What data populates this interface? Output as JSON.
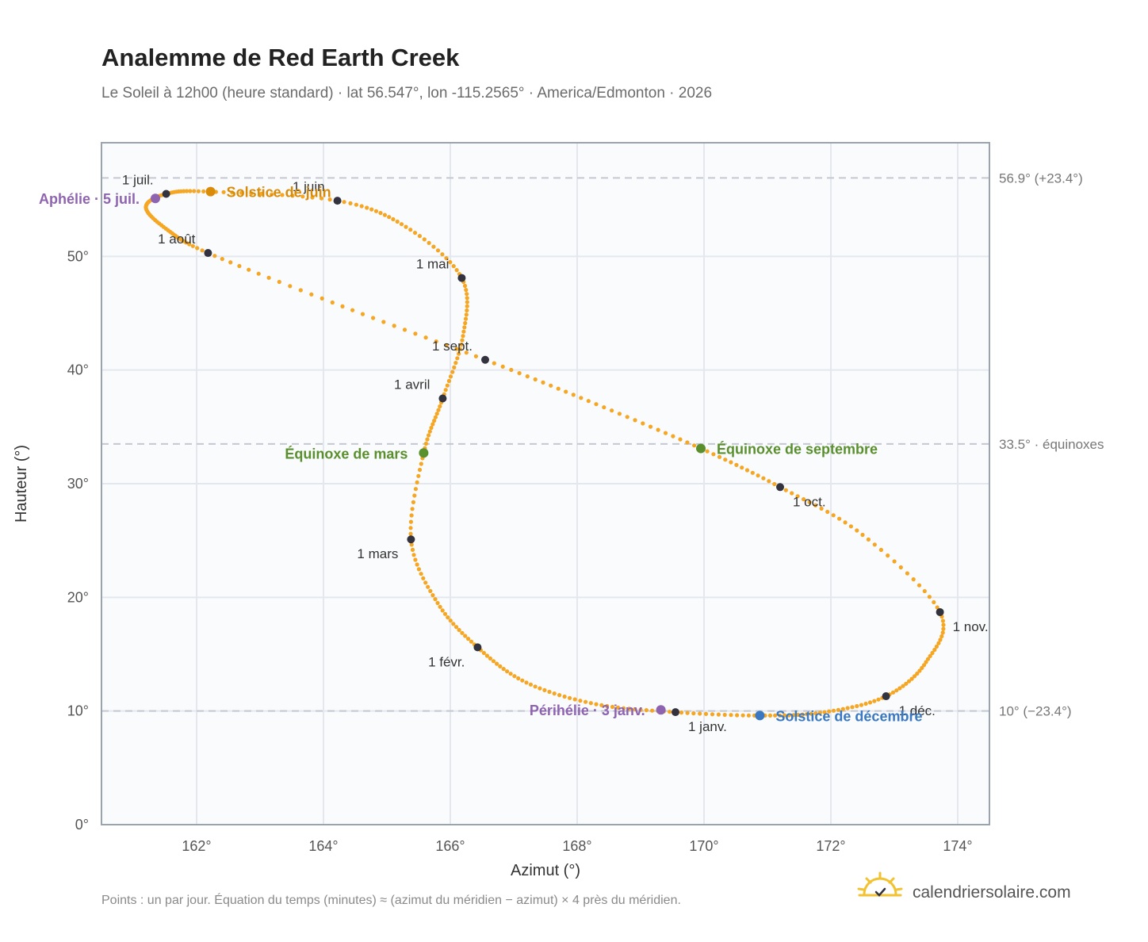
{
  "header": {
    "title": "Analemme de Red Earth Creek",
    "subtitle": "Le Soleil à 12h00 (heure standard) · lat 56.547°, lon -115.2565° · America/Edmonton · 2026"
  },
  "footer": {
    "note": "Points : un par jour. Équation du temps (minutes) ≈ (azimut du méridien − azimut) × 4 près du méridien.",
    "brand": "calendriersolaire.com"
  },
  "colors": {
    "curve": "#f5a623",
    "month_marker": "#333340",
    "solstice_june": "#d98c0a",
    "solstice_december": "#3a78c2",
    "equinox": "#5a8f2e",
    "apsis": "#8e63b0",
    "ref_line": "#c3c8d2",
    "grid": "#e4e8ee",
    "plot_bg": "#fafbfd",
    "frame": "#9aa3b0"
  },
  "chart_data": {
    "type": "scatter",
    "title": "Analemme de Red Earth Creek",
    "xlabel": "Azimut (°)",
    "ylabel": "Hauteur (°)",
    "xlim": [
      160.5,
      174.5
    ],
    "ylim": [
      0,
      60
    ],
    "grid": true,
    "xticks": [
      {
        "value": 162,
        "label": "162°"
      },
      {
        "value": 164,
        "label": "164°"
      },
      {
        "value": 166,
        "label": "166°"
      },
      {
        "value": 168,
        "label": "168°"
      },
      {
        "value": 170,
        "label": "170°"
      },
      {
        "value": 172,
        "label": "172°"
      },
      {
        "value": 174,
        "label": "174°"
      }
    ],
    "yticks": [
      {
        "value": 0,
        "label": "0°"
      },
      {
        "value": 10,
        "label": "10°"
      },
      {
        "value": 20,
        "label": "20°"
      },
      {
        "value": 30,
        "label": "30°"
      },
      {
        "value": 40,
        "label": "40°"
      },
      {
        "value": 50,
        "label": "50°"
      }
    ],
    "reference_lines": [
      {
        "y": 56.9,
        "label": "56.9° (+23.4°)"
      },
      {
        "y": 33.5,
        "label": "33.5° · équinoxes"
      },
      {
        "y": 10.0,
        "label": "10° (−23.4°)"
      }
    ],
    "curve_keypoints": [
      {
        "x": 169.55,
        "y": 9.9
      },
      {
        "x": 168.3,
        "y": 10.6
      },
      {
        "x": 167.2,
        "y": 12.5
      },
      {
        "x": 166.43,
        "y": 15.6
      },
      {
        "x": 165.8,
        "y": 19.5
      },
      {
        "x": 165.38,
        "y": 25.1
      },
      {
        "x": 165.58,
        "y": 32.7
      },
      {
        "x": 165.88,
        "y": 37.5
      },
      {
        "x": 166.2,
        "y": 43.0
      },
      {
        "x": 166.18,
        "y": 48.1
      },
      {
        "x": 165.3,
        "y": 52.6
      },
      {
        "x": 164.22,
        "y": 54.9
      },
      {
        "x": 162.2,
        "y": 55.7
      },
      {
        "x": 161.52,
        "y": 55.5
      },
      {
        "x": 161.2,
        "y": 54.3
      },
      {
        "x": 161.55,
        "y": 52.3
      },
      {
        "x": 162.18,
        "y": 50.3
      },
      {
        "x": 164.3,
        "y": 45.6
      },
      {
        "x": 166.55,
        "y": 40.9
      },
      {
        "x": 168.3,
        "y": 37.0
      },
      {
        "x": 169.95,
        "y": 33.1
      },
      {
        "x": 171.2,
        "y": 29.7
      },
      {
        "x": 172.5,
        "y": 25.5
      },
      {
        "x": 173.72,
        "y": 18.7
      },
      {
        "x": 173.5,
        "y": 14.3
      },
      {
        "x": 172.87,
        "y": 11.3
      },
      {
        "x": 171.9,
        "y": 9.9
      },
      {
        "x": 170.88,
        "y": 9.6
      },
      {
        "x": 169.55,
        "y": 9.9
      }
    ],
    "month_markers": [
      {
        "label": "1 janv.",
        "x": 169.55,
        "y": 9.9,
        "pos": "below-right"
      },
      {
        "label": "1 févr.",
        "x": 166.43,
        "y": 15.6,
        "pos": "below-left"
      },
      {
        "label": "1 mars",
        "x": 165.38,
        "y": 25.1,
        "pos": "below-left"
      },
      {
        "label": "1 avril",
        "x": 165.88,
        "y": 37.5,
        "pos": "above-left"
      },
      {
        "label": "1 mai",
        "x": 166.18,
        "y": 48.1,
        "pos": "above-left"
      },
      {
        "label": "1 juin",
        "x": 164.22,
        "y": 54.9,
        "pos": "above-left"
      },
      {
        "label": "1 juil.",
        "x": 161.52,
        "y": 55.5,
        "pos": "above-left"
      },
      {
        "label": "1 août",
        "x": 162.18,
        "y": 50.3,
        "pos": "above-left"
      },
      {
        "label": "1 sept.",
        "x": 166.55,
        "y": 40.9,
        "pos": "above-left"
      },
      {
        "label": "1 oct.",
        "x": 171.2,
        "y": 29.7,
        "pos": "below-right"
      },
      {
        "label": "1 nov.",
        "x": 173.72,
        "y": 18.7,
        "pos": "below-right"
      },
      {
        "label": "1 déc.",
        "x": 172.87,
        "y": 11.3,
        "pos": "below-right"
      }
    ],
    "events": [
      {
        "label": "Solstice de juin",
        "x": 162.22,
        "y": 55.7,
        "color": "#d98c0a",
        "pos": "right"
      },
      {
        "label": "Solstice de décembre",
        "x": 170.88,
        "y": 9.6,
        "color": "#3a78c2",
        "pos": "right"
      },
      {
        "label": "Équinoxe de mars",
        "x": 165.58,
        "y": 32.7,
        "color": "#5a8f2e",
        "pos": "left"
      },
      {
        "label": "Équinoxe de septembre",
        "x": 169.95,
        "y": 33.1,
        "color": "#5a8f2e",
        "pos": "right"
      },
      {
        "label": "Aphélie · 5 juil.",
        "x": 161.35,
        "y": 55.1,
        "color": "#8e63b0",
        "pos": "left"
      },
      {
        "label": "Périhélie · 3 janv.",
        "x": 169.32,
        "y": 10.1,
        "color": "#8e63b0",
        "pos": "left"
      }
    ]
  }
}
